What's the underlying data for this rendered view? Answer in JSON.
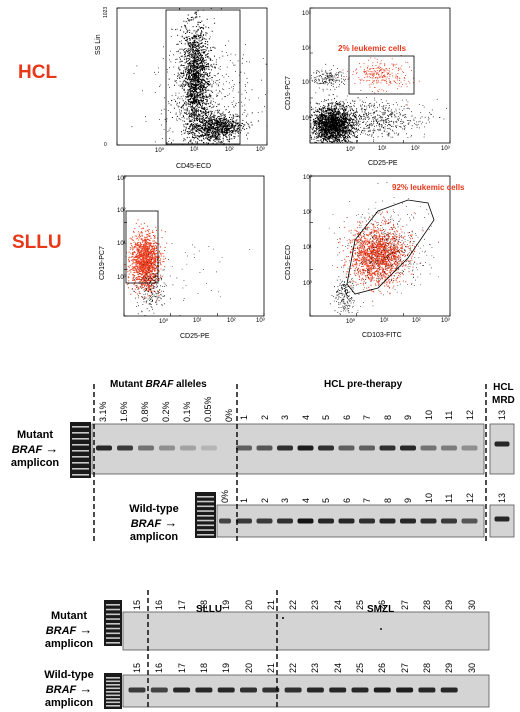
{
  "flow": {
    "rows": [
      "HCL",
      "SLLU"
    ],
    "plots": [
      {
        "ylabel": "SS Lin",
        "xlabel": "CD45-ECD",
        "ymax": "1023",
        "ymin": "0",
        "xticks": [
          "10⁰",
          "10¹",
          "10²",
          "10³"
        ],
        "gate_text": ""
      },
      {
        "ylabel": "CD19-PC7",
        "xlabel": "CD25-PE",
        "xticks": [
          "10⁰",
          "10¹",
          "10²",
          "10³"
        ],
        "yticks": [
          "10⁰",
          "10¹",
          "10²",
          "10³"
        ],
        "gate_text": "2% leukemic cells"
      },
      {
        "ylabel": "CD19-PC7",
        "xlabel": "CD25-PE",
        "xticks": [
          "10⁰",
          "10¹",
          "10²",
          "10³"
        ],
        "yticks": [
          "10⁰",
          "10¹",
          "10²",
          "10³"
        ],
        "gate_text": ""
      },
      {
        "ylabel": "CD19-ECD",
        "xlabel": "CD103-FITC",
        "xticks": [
          "10⁰",
          "10¹",
          "10²",
          "10³"
        ],
        "yticks": [
          "10⁰",
          "10¹",
          "10²",
          "10³"
        ],
        "gate_text": "92% leukemic cells"
      }
    ]
  },
  "gel_top": {
    "headers": {
      "mutant_alleles_pre": "Mutant ",
      "mutant_alleles_braf": "BRAF",
      "mutant_alleles_post": " alleles",
      "pretherapy": "HCL pre-therapy",
      "mrd_line1": "HCL",
      "mrd_line2": "MRD"
    },
    "dilutions": [
      "3.1%",
      "1.6%",
      "0.8%",
      "0.2%",
      "0.1%",
      "0.05%",
      "0%"
    ],
    "lanes": [
      "1",
      "2",
      "3",
      "4",
      "5",
      "6",
      "7",
      "8",
      "9",
      "10",
      "11",
      "12"
    ],
    "mrd_lane": "13",
    "mutant_label": {
      "line1": "Mutant",
      "line2": "BRAF",
      "line3": "amplicon"
    },
    "wt_label": {
      "line1": "Wild-type",
      "line2": "BRAF",
      "line3": "amplicon"
    },
    "wt_zero": "0%",
    "mutant_band_intensity": [
      0.85,
      0.75,
      0.45,
      0.3,
      0.2,
      0.1,
      0.0,
      0.55,
      0.6,
      0.8,
      0.9,
      0.8,
      0.55,
      0.55,
      0.8,
      0.85,
      0.45,
      0.4,
      0.3
    ],
    "wt_band_intensity": [
      0.7,
      0.75,
      0.75,
      0.8,
      0.95,
      0.85,
      0.85,
      0.8,
      0.85,
      0.85,
      0.8,
      0.75,
      0.6,
      0.8
    ]
  },
  "gel_bottom": {
    "headers": {
      "sllu": "SLLU",
      "smzl": "SMZL"
    },
    "lanes_sllu": [
      "15",
      "16",
      "17",
      "18",
      "19",
      "20"
    ],
    "lanes_smzl": [
      "21",
      "22",
      "23",
      "24",
      "25",
      "26",
      "27",
      "28",
      "29",
      "30"
    ],
    "mutant_label": {
      "line1": "Mutant",
      "line2": "BRAF",
      "line3": "amplicon"
    },
    "wt_label": {
      "line1": "Wild-type",
      "line2": "BRAF",
      "line3": "amplicon"
    },
    "wt_band_intensity": [
      0.75,
      0.7,
      0.85,
      0.85,
      0.85,
      0.8,
      0.8,
      0.8,
      0.85,
      0.85,
      0.85,
      0.9,
      0.9,
      0.85,
      0.85,
      0.0
    ]
  }
}
